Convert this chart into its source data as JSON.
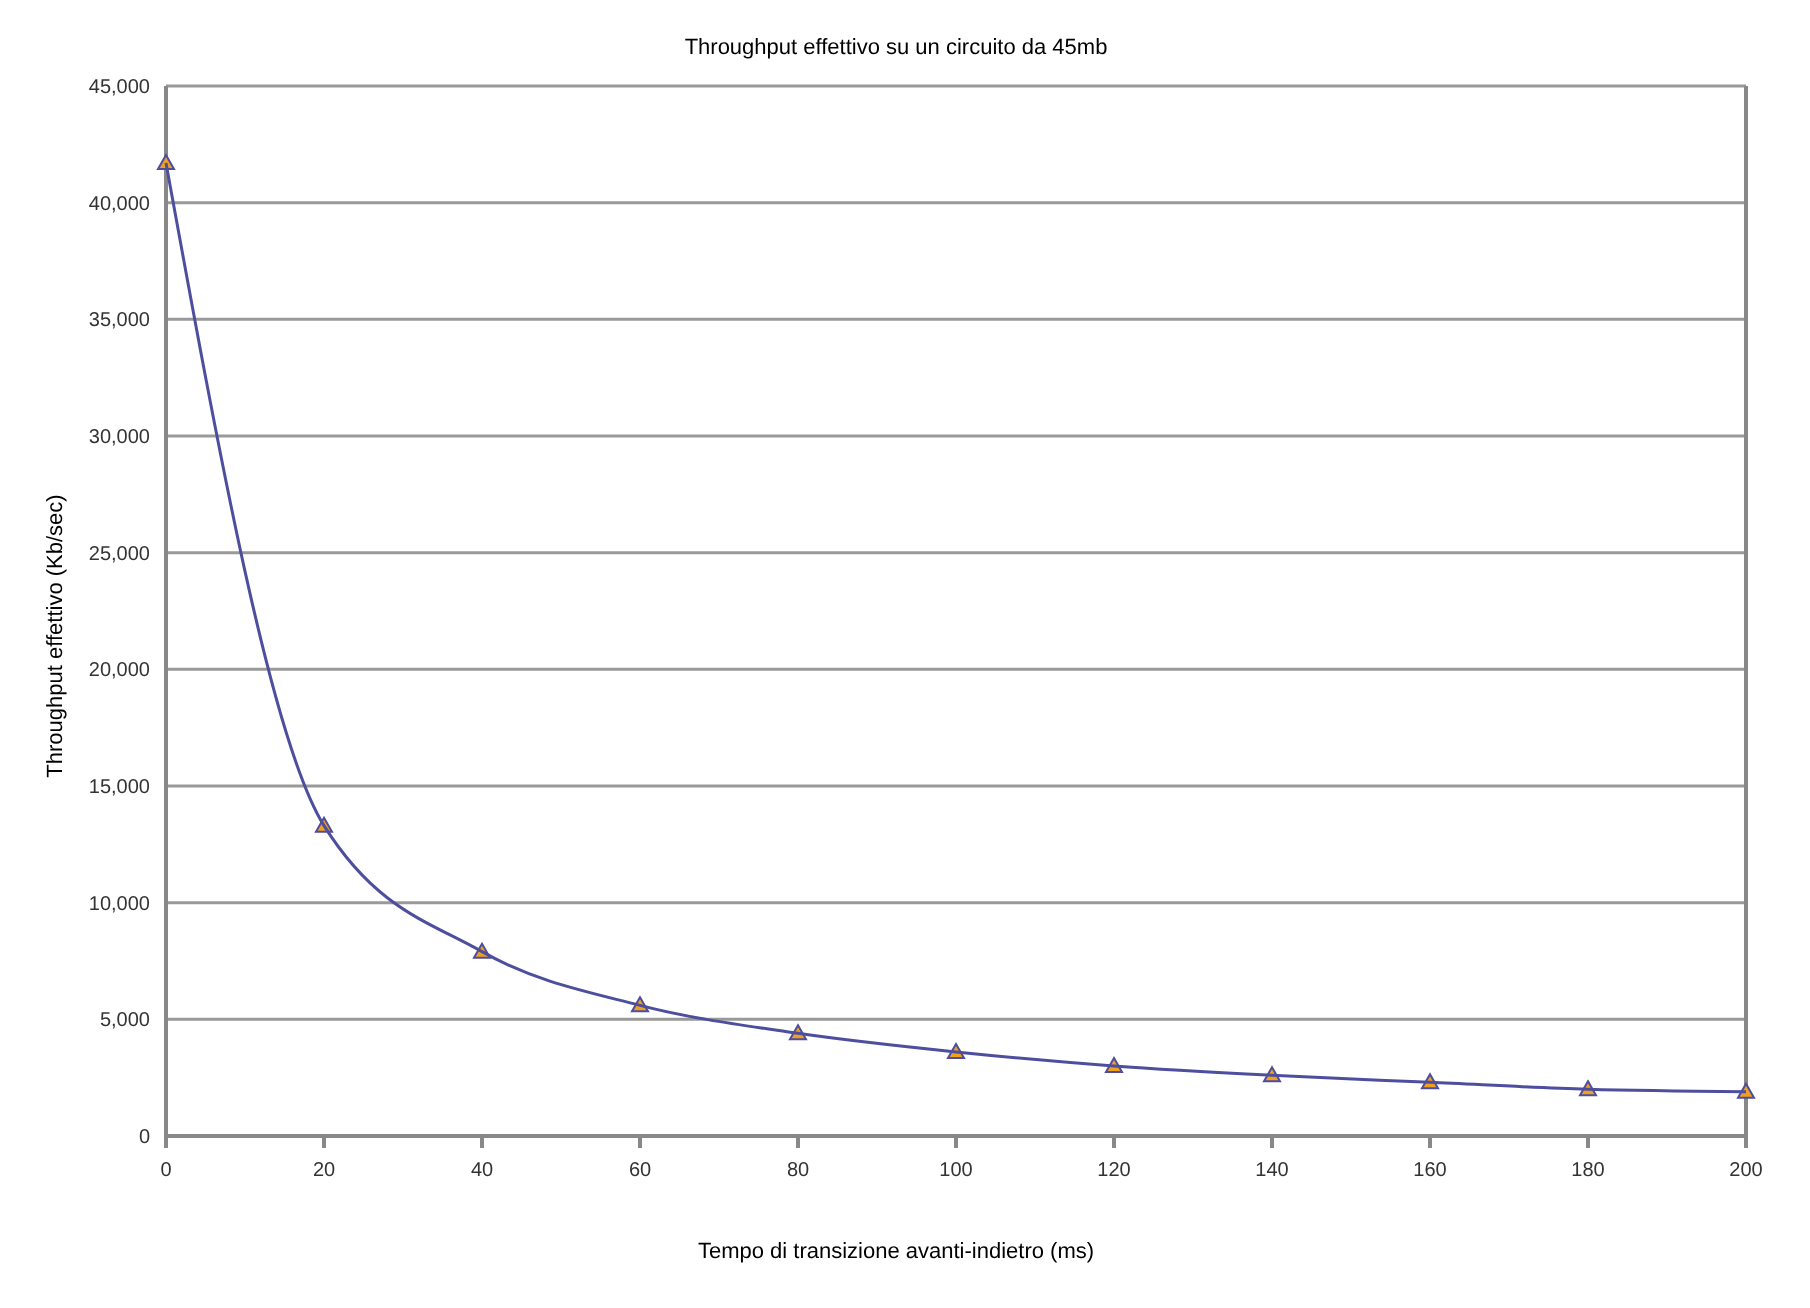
{
  "chart_data": {
    "type": "line",
    "title": "Throughput effettivo su un circuito da 45mb",
    "xlabel": "Tempo di transizione avanti-indietro (ms)",
    "ylabel": "Throughput effettivo (Kb/sec)",
    "x": [
      0,
      20,
      40,
      60,
      80,
      100,
      120,
      140,
      160,
      180,
      200
    ],
    "series": [
      {
        "color": "#4e4e9e",
        "values": [
          41700,
          13300,
          7900,
          5600,
          4400,
          3600,
          3000,
          2600,
          2300,
          2000,
          1900
        ]
      }
    ],
    "xlim": [
      0,
      200
    ],
    "xticks": [
      0,
      20,
      40,
      60,
      80,
      100,
      120,
      140,
      160,
      180,
      200
    ],
    "ylim": [
      0,
      45000
    ],
    "yticks": [
      {
        "value": 0,
        "label": "0"
      },
      {
        "value": 5000,
        "label": "5,000"
      },
      {
        "value": 10000,
        "label": "10,000"
      },
      {
        "value": 15000,
        "label": "15,000"
      },
      {
        "value": 20000,
        "label": "20,000"
      },
      {
        "value": 25000,
        "label": "25,000"
      },
      {
        "value": 30000,
        "label": "30,000"
      },
      {
        "value": 35000,
        "label": "35,000"
      },
      {
        "value": 40000,
        "label": "40,000"
      },
      {
        "value": 45000,
        "label": "45,000"
      }
    ],
    "grid": "y",
    "legend": false,
    "marker": "triangle",
    "line_style": "solid"
  }
}
